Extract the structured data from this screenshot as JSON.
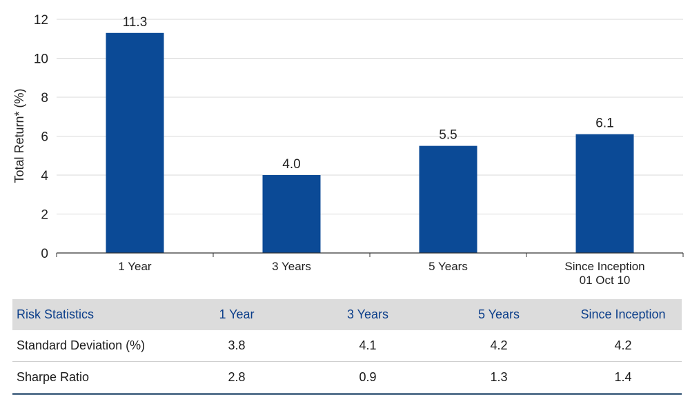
{
  "chart_data": {
    "type": "bar",
    "categories": [
      "1 Year",
      "3 Years",
      "5 Years",
      "Since Inception\n01 Oct 10"
    ],
    "values": [
      11.3,
      4.0,
      5.5,
      6.1
    ],
    "value_labels": [
      "11.3",
      "4.0",
      "5.5",
      "6.1"
    ],
    "title": "",
    "xlabel": "",
    "ylabel": "Total Return* (%)",
    "ylim": [
      0,
      12
    ],
    "yticks": [
      0,
      2,
      4,
      6,
      8,
      10,
      12
    ],
    "grid": true,
    "bar_color": "#0b4a96",
    "grid_color": "#d9d9d9"
  },
  "risk_table": {
    "headers": [
      "Risk Statistics",
      "1 Year",
      "3 Years",
      "5 Years",
      "Since Inception"
    ],
    "rows": [
      [
        "Standard Deviation (%)",
        "3.8",
        "4.1",
        "4.2",
        "4.2"
      ],
      [
        "Sharpe Ratio",
        "2.8",
        "0.9",
        "1.3",
        "1.4"
      ]
    ]
  }
}
